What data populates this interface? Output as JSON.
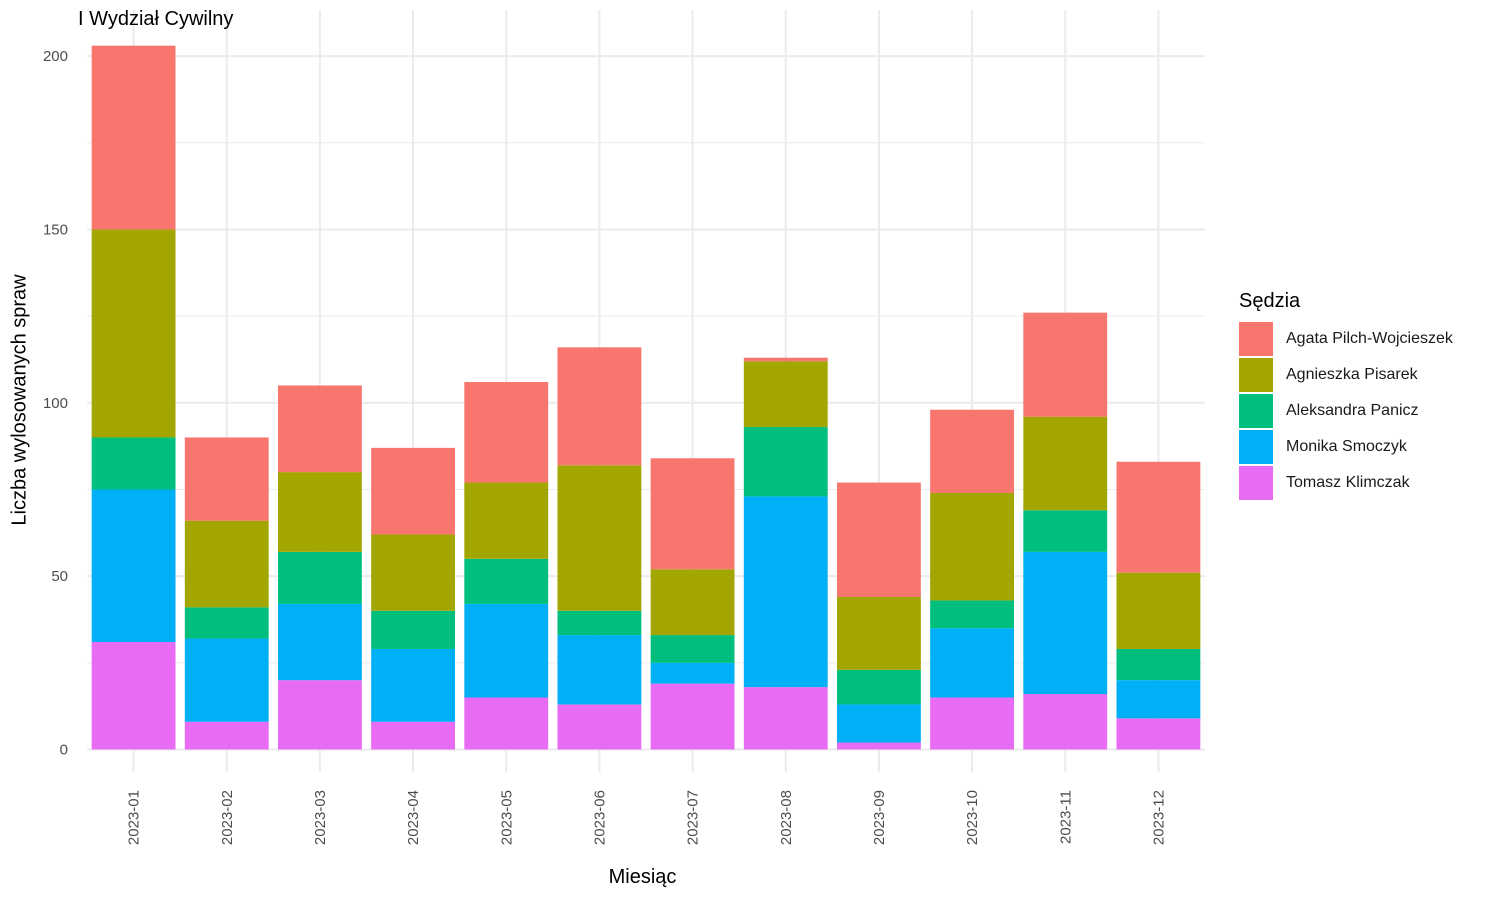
{
  "chart_data": {
    "type": "bar",
    "stacked": true,
    "title": "I Wydział Cywilny",
    "xlabel": "Miesiąc",
    "ylabel": "Liczba wylosowanych spraw",
    "ylim": [
      0,
      210
    ],
    "yticks": [
      "0",
      "50",
      "100",
      "150",
      "200"
    ],
    "grid": true,
    "legend_position": "right",
    "legend_title": "Sędzia",
    "categories": [
      "2023-01",
      "2023-02",
      "2023-03",
      "2023-04",
      "2023-05",
      "2023-06",
      "2023-07",
      "2023-08",
      "2023-09",
      "2023-10",
      "2023-11",
      "2023-12"
    ],
    "series": [
      {
        "name": "Agata Pilch-Wojcieszek",
        "color": "#F8766D",
        "values": [
          53,
          24,
          25,
          25,
          29,
          34,
          32,
          1,
          33,
          24,
          30,
          32
        ]
      },
      {
        "name": "Agnieszka Pisarek",
        "color": "#A3A500",
        "values": [
          60,
          25,
          23,
          22,
          22,
          42,
          19,
          19,
          21,
          31,
          27,
          22
        ]
      },
      {
        "name": "Aleksandra Panicz",
        "color": "#00BF7D",
        "values": [
          15,
          9,
          15,
          11,
          13,
          7,
          8,
          20,
          10,
          8,
          12,
          9
        ]
      },
      {
        "name": "Monika Smoczyk",
        "color": "#00B0F6",
        "values": [
          44,
          24,
          22,
          21,
          27,
          20,
          6,
          55,
          11,
          20,
          41,
          11
        ]
      },
      {
        "name": "Tomasz Klimczak",
        "color": "#E76BF3",
        "values": [
          31,
          8,
          20,
          8,
          15,
          13,
          19,
          18,
          2,
          15,
          16,
          9
        ]
      }
    ]
  }
}
